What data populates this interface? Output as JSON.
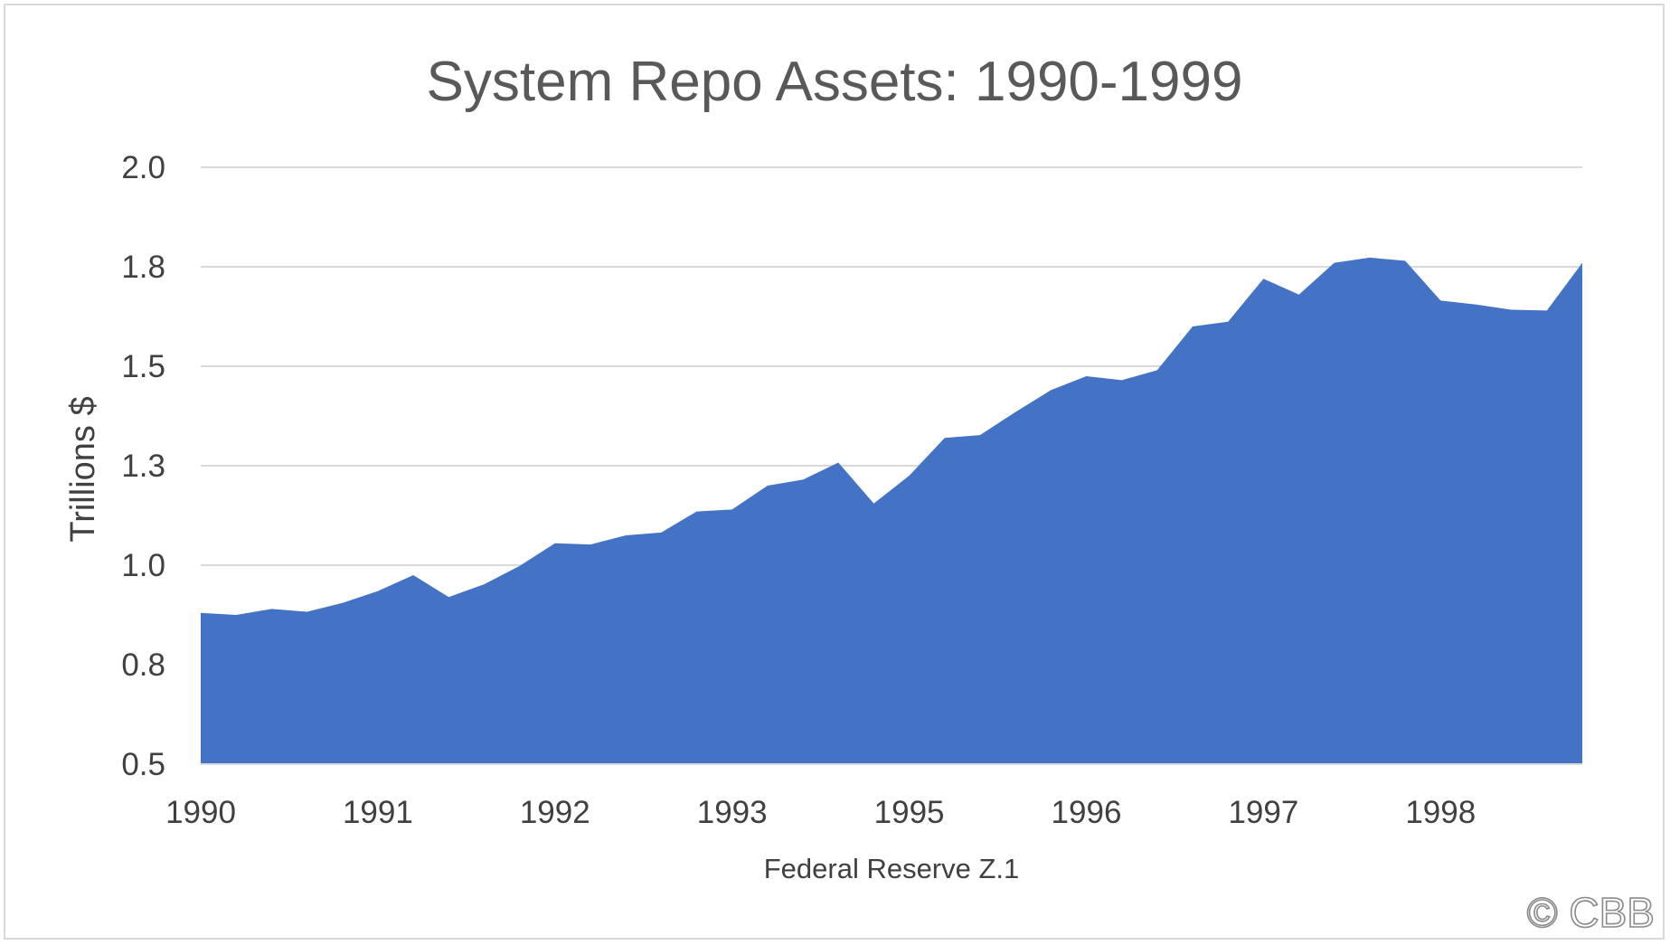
{
  "chart_data": {
    "type": "area",
    "title": "System Repo Assets: 1990-1999",
    "xlabel": "Federal Reserve Z.1",
    "ylabel": "Trillions $",
    "ylim": [
      0.5,
      2.0
    ],
    "grid": true,
    "legend": "none",
    "y_ticks": [
      "0.5",
      "0.8",
      "1.0",
      "1.3",
      "1.5",
      "1.8",
      "2.0"
    ],
    "x_ticks": [
      "1990",
      "1991",
      "1992",
      "1993",
      "1995",
      "1996",
      "1997",
      "1998"
    ],
    "series": [
      {
        "color": "#4472C4",
        "values": [
          0.88,
          0.875,
          0.89,
          0.883,
          0.905,
          0.935,
          0.975,
          0.92,
          0.952,
          0.998,
          1.055,
          1.052,
          1.075,
          1.082,
          1.135,
          1.14,
          1.2,
          1.215,
          1.258,
          1.155,
          1.225,
          1.32,
          1.327,
          1.385,
          1.44,
          1.475,
          1.465,
          1.49,
          1.6,
          1.612,
          1.72,
          1.68,
          1.76,
          1.773,
          1.765,
          1.665,
          1.655,
          1.642,
          1.64,
          1.76
        ]
      }
    ]
  },
  "watermark": "© CBB"
}
